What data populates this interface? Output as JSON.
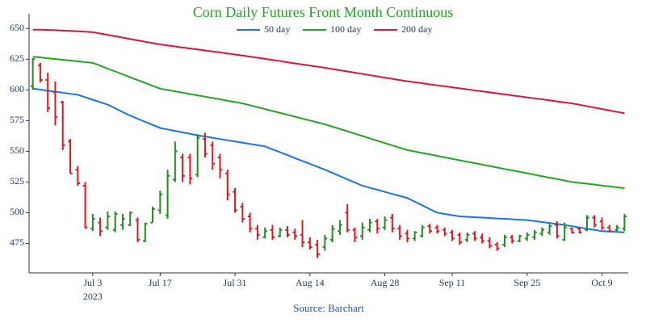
{
  "chart_data": {
    "type": "ohlc",
    "title": "Corn Daily Futures Front Month Continuous",
    "source": "Source: Barchart",
    "x_year_label": "2023",
    "categories": [
      null,
      null,
      null,
      null,
      null,
      null,
      null,
      null,
      "Jul 3",
      null,
      null,
      null,
      null,
      null,
      null,
      null,
      null,
      "Jul 17",
      null,
      null,
      null,
      null,
      null,
      null,
      null,
      null,
      null,
      "Jul 31",
      null,
      null,
      null,
      null,
      null,
      null,
      null,
      null,
      null,
      "Aug 14",
      null,
      null,
      null,
      null,
      null,
      null,
      null,
      null,
      null,
      "Aug 28",
      null,
      null,
      null,
      null,
      null,
      null,
      null,
      null,
      "Sep 11",
      null,
      null,
      null,
      null,
      null,
      null,
      null,
      null,
      null,
      "Sep 25",
      null,
      null,
      null,
      null,
      null,
      null,
      null,
      null,
      null,
      "Oct 9",
      null,
      null,
      null
    ],
    "ohlc": {
      "up_color": "#1f8f1f",
      "down_color": "#e8141e",
      "open": [
        603,
        620,
        608,
        598,
        590,
        558,
        535,
        522,
        487,
        492,
        488,
        486,
        490,
        490,
        494,
        477,
        492,
        502,
        498,
        527,
        545,
        545,
        531,
        560,
        555,
        545,
        532,
        517,
        505,
        497,
        487,
        480,
        486,
        481,
        486,
        484,
        482,
        476,
        474,
        472,
        478,
        485,
        500,
        486,
        481,
        486,
        493,
        488,
        496,
        487,
        483,
        479,
        481,
        489,
        488,
        486,
        484,
        482,
        478,
        483,
        480,
        477,
        474,
        474,
        480,
        477,
        479,
        480,
        483,
        484,
        490,
        478,
        487,
        487,
        486,
        496,
        493,
        488,
        486,
        487
      ],
      "high": [
        626,
        622,
        614,
        607,
        591,
        560,
        538,
        525,
        499,
        496,
        501,
        501,
        499,
        501,
        496,
        492,
        505,
        518,
        535,
        558,
        548,
        548,
        564,
        565,
        558,
        548,
        535,
        520,
        508,
        500,
        490,
        488,
        490,
        488,
        489,
        487,
        494,
        480,
        478,
        482,
        490,
        494,
        507,
        488,
        492,
        495,
        495,
        497,
        499,
        490,
        486,
        485,
        490,
        491,
        490,
        488,
        486,
        484,
        484,
        485,
        483,
        480,
        476,
        482,
        482,
        482,
        484,
        486,
        488,
        491,
        493,
        492,
        488,
        488,
        498,
        498,
        496,
        490,
        490,
        499
      ],
      "low": [
        600,
        606,
        582,
        571,
        551,
        532,
        522,
        487,
        485,
        481,
        486,
        484,
        486,
        489,
        476,
        476,
        492,
        499,
        495,
        525,
        525,
        523,
        529,
        545,
        535,
        528,
        510,
        500,
        492,
        484,
        478,
        479,
        478,
        480,
        480,
        478,
        472,
        470,
        463,
        469,
        476,
        482,
        484,
        476,
        478,
        484,
        483,
        486,
        484,
        478,
        476,
        477,
        480,
        483,
        483,
        481,
        477,
        474,
        476,
        477,
        475,
        471,
        469,
        472,
        475,
        476,
        477,
        478,
        481,
        482,
        479,
        477,
        483,
        483,
        485,
        488,
        486,
        484,
        484,
        485
      ],
      "close": [
        625,
        608,
        585,
        578,
        555,
        532,
        524,
        488,
        495,
        485,
        497,
        499,
        495,
        500,
        478,
        491,
        503,
        515,
        530,
        550,
        530,
        528,
        561,
        548,
        540,
        535,
        515,
        502,
        495,
        487,
        482,
        485,
        480,
        486,
        482,
        481,
        476,
        472,
        466,
        479,
        487,
        490,
        486,
        480,
        488,
        492,
        487,
        494,
        487,
        481,
        479,
        484,
        488,
        485,
        485,
        483,
        479,
        476,
        482,
        479,
        477,
        473,
        471,
        480,
        477,
        481,
        482,
        484,
        486,
        489,
        481,
        488,
        484,
        484,
        496,
        490,
        488,
        485,
        488,
        497
      ]
    },
    "series": [
      {
        "name": "50 day",
        "color": "#1a73e8",
        "values": [
          601,
          600.2,
          599.3,
          598.5,
          597.7,
          596.8,
          596,
          594,
          592,
          590,
          588,
          585,
          582,
          579,
          576.5,
          574,
          571.5,
          569,
          567.8,
          566.6,
          565.4,
          564.2,
          563,
          562,
          561,
          560,
          559,
          558,
          557,
          556,
          555,
          554,
          551.6,
          549.3,
          546.9,
          544.5,
          542.1,
          539.8,
          537.4,
          535,
          532.4,
          529.8,
          527.2,
          524.6,
          522,
          520.3,
          518.7,
          517,
          515.3,
          513.7,
          512,
          509,
          506,
          503,
          500,
          499,
          498,
          497,
          496.7,
          496.3,
          496,
          495.7,
          495.3,
          495,
          494.7,
          494.3,
          494,
          493.2,
          492.4,
          491.6,
          490.8,
          490,
          489,
          488,
          487,
          486,
          485,
          484.7,
          484.3,
          484
        ]
      },
      {
        "name": "100 day",
        "color": "#22a622",
        "values": [
          627,
          626.4,
          625.8,
          625.1,
          624.5,
          623.9,
          623.3,
          622.6,
          622,
          619.7,
          617.3,
          615,
          612.7,
          610.3,
          608,
          605.7,
          603.3,
          601,
          599.9,
          598.8,
          597.7,
          596.6,
          595.5,
          594.5,
          593.4,
          592.3,
          591.2,
          590.1,
          589,
          587.5,
          585.9,
          584.4,
          582.8,
          581.3,
          579.7,
          578.2,
          576.6,
          575.1,
          573.5,
          572,
          570.1,
          568.2,
          566.3,
          564.4,
          562.5,
          560.5,
          558.6,
          556.7,
          554.8,
          552.9,
          551,
          549.8,
          548.6,
          547.5,
          546.3,
          545.1,
          543.9,
          542.7,
          541.5,
          540.4,
          539.2,
          538,
          536.8,
          535.6,
          534.5,
          533.3,
          532.1,
          530.9,
          529.7,
          528.5,
          527.4,
          526.2,
          525,
          524.3,
          523.6,
          522.9,
          522.1,
          521.4,
          520.7,
          520
        ]
      },
      {
        "name": "200 day",
        "color": "#dc143c",
        "values": [
          649,
          649,
          648.8,
          648.6,
          648.3,
          648,
          647.7,
          647.4,
          647,
          645.9,
          644.8,
          643.7,
          642.6,
          641.4,
          640.3,
          639.2,
          638.1,
          637,
          636.2,
          635.4,
          634.5,
          633.7,
          632.9,
          632.1,
          631.3,
          630.5,
          629.6,
          628.8,
          628,
          627.1,
          626.2,
          625.3,
          624.4,
          623.5,
          622.5,
          621.6,
          620.7,
          619.8,
          618.9,
          618,
          617,
          616,
          615,
          614,
          613,
          612,
          611,
          610,
          609,
          608,
          607,
          606.2,
          605.4,
          604.5,
          603.7,
          602.9,
          602.1,
          601.3,
          600.5,
          599.6,
          598.8,
          598,
          597.2,
          596.4,
          595.5,
          594.7,
          593.9,
          593.1,
          592.3,
          591.5,
          590.6,
          589.8,
          589,
          587.9,
          586.7,
          585.6,
          584.4,
          583.3,
          582.1,
          581
        ]
      }
    ],
    "ylim": [
      451,
      662
    ],
    "yticks": [
      475,
      500,
      525,
      550,
      575,
      600,
      625,
      650
    ],
    "grid": false
  }
}
